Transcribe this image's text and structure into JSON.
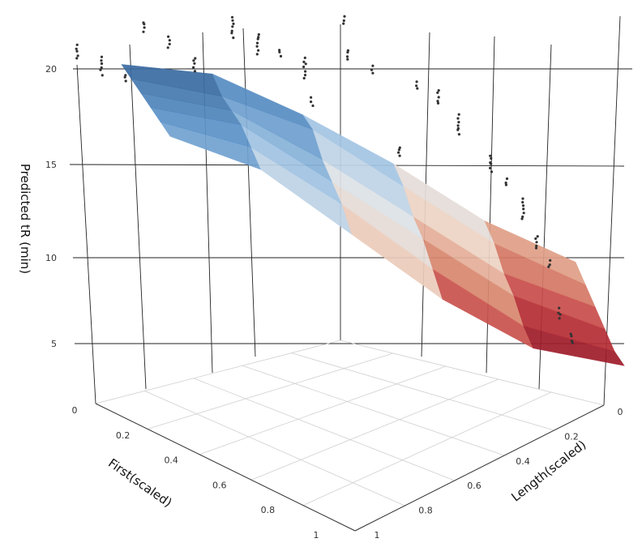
{
  "chart_data": {
    "type": "surface3d",
    "axes": {
      "z": {
        "label": "Predicted tR (min)",
        "ticks": [
          5,
          10,
          15,
          20
        ]
      },
      "x": {
        "label": "First(scaled)",
        "range": [
          0,
          1
        ],
        "ticks": [
          "0",
          "0.2",
          "0.4",
          "0.6",
          "0.8",
          "1"
        ]
      },
      "y": {
        "label": "Length(scaled)",
        "range": [
          0,
          1
        ],
        "ticks": [
          "0",
          "0.2",
          "0.4",
          "0.6",
          "0.8",
          "1"
        ]
      }
    },
    "grid": true,
    "colorscale": [
      "#8b1022",
      "#c0343a",
      "#dc8f74",
      "#eed6c6",
      "#dce3ea",
      "#9fc3e3",
      "#5b92c8",
      "#2f5e94"
    ],
    "surface": {
      "description_free": true,
      "first_scaled": [
        0,
        0.2,
        0.4,
        0.6,
        0.8,
        1
      ],
      "length_scaled": [
        0,
        0.2,
        0.4,
        0.6,
        0.8,
        1
      ],
      "predicted_tr": [
        [
          21.5,
          21.0,
          18.5,
          15.5,
          12.0,
          9.5
        ],
        [
          21.0,
          20.0,
          18.0,
          14.5,
          11.0,
          8.5
        ],
        [
          20.5,
          19.5,
          16.5,
          13.0,
          9.5,
          7.5
        ],
        [
          20.0,
          19.0,
          15.5,
          12.0,
          8.5,
          6.5
        ],
        [
          19.5,
          18.0,
          14.5,
          10.5,
          7.0,
          5.5
        ],
        [
          19.0,
          17.0,
          13.0,
          9.0,
          6.0,
          5.0
        ]
      ]
    },
    "points_series": "observed"
  }
}
